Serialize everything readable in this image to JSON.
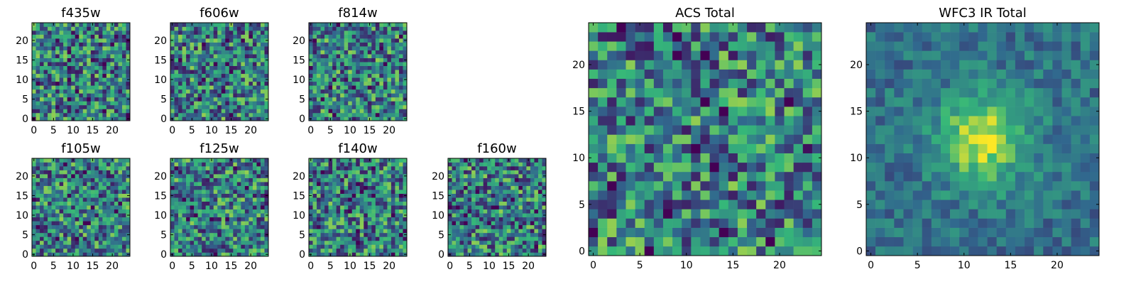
{
  "chart_data": {
    "type": "heatmap",
    "colormap": [
      "#440154",
      "#31688e",
      "#35b779",
      "#fde725"
    ],
    "panels": [
      {
        "title": "f435w",
        "xticks": [
          0,
          5,
          10,
          15,
          20
        ],
        "yticks": [
          0,
          5,
          10,
          15,
          20
        ],
        "xlim": [
          -0.5,
          24.5
        ],
        "ylim": [
          -0.5,
          24.5
        ],
        "grid_size": 25,
        "pattern": "noise",
        "seed": 1
      },
      {
        "title": "f606w",
        "xticks": [
          0,
          5,
          10,
          15,
          20
        ],
        "yticks": [
          0,
          5,
          10,
          15,
          20
        ],
        "xlim": [
          -0.5,
          24.5
        ],
        "ylim": [
          -0.5,
          24.5
        ],
        "grid_size": 25,
        "pattern": "noise",
        "seed": 2
      },
      {
        "title": "f814w",
        "xticks": [
          0,
          5,
          10,
          15,
          20
        ],
        "yticks": [
          0,
          5,
          10,
          15,
          20
        ],
        "xlim": [
          -0.5,
          24.5
        ],
        "ylim": [
          -0.5,
          24.5
        ],
        "grid_size": 25,
        "pattern": "noise",
        "seed": 3
      },
      {
        "title": "f105w",
        "xticks": [
          0,
          5,
          10,
          15,
          20
        ],
        "yticks": [
          0,
          5,
          10,
          15,
          20
        ],
        "xlim": [
          -0.5,
          24.5
        ],
        "ylim": [
          -0.5,
          24.5
        ],
        "grid_size": 25,
        "pattern": "noise",
        "seed": 4
      },
      {
        "title": "f125w",
        "xticks": [
          0,
          5,
          10,
          15,
          20
        ],
        "yticks": [
          0,
          5,
          10,
          15,
          20
        ],
        "xlim": [
          -0.5,
          24.5
        ],
        "ylim": [
          -0.5,
          24.5
        ],
        "grid_size": 25,
        "pattern": "noise",
        "seed": 5
      },
      {
        "title": "f140w",
        "xticks": [
          0,
          5,
          10,
          15,
          20
        ],
        "yticks": [
          0,
          5,
          10,
          15,
          20
        ],
        "xlim": [
          -0.5,
          24.5
        ],
        "ylim": [
          -0.5,
          24.5
        ],
        "grid_size": 25,
        "pattern": "noise",
        "seed": 6
      },
      {
        "title": "f160w",
        "xticks": [
          0,
          5,
          10,
          15,
          20
        ],
        "yticks": [
          0,
          5,
          10,
          15,
          20
        ],
        "xlim": [
          -0.5,
          24.5
        ],
        "ylim": [
          -0.5,
          24.5
        ],
        "grid_size": 25,
        "pattern": "noise",
        "seed": 7
      },
      {
        "title": "ACS Total",
        "xticks": [
          0,
          5,
          10,
          15,
          20
        ],
        "yticks": [
          0,
          5,
          10,
          15,
          20
        ],
        "xlim": [
          -0.5,
          24.5
        ],
        "ylim": [
          -0.5,
          24.5
        ],
        "grid_size": 25,
        "pattern": "noise",
        "seed": 8
      },
      {
        "title": "WFC3 IR Total",
        "xticks": [
          0,
          5,
          10,
          15,
          20
        ],
        "yticks": [
          0,
          5,
          10,
          15,
          20
        ],
        "xlim": [
          -0.5,
          24.5
        ],
        "ylim": [
          -0.5,
          24.5
        ],
        "grid_size": 25,
        "pattern": "central-source",
        "seed": 9
      }
    ]
  }
}
